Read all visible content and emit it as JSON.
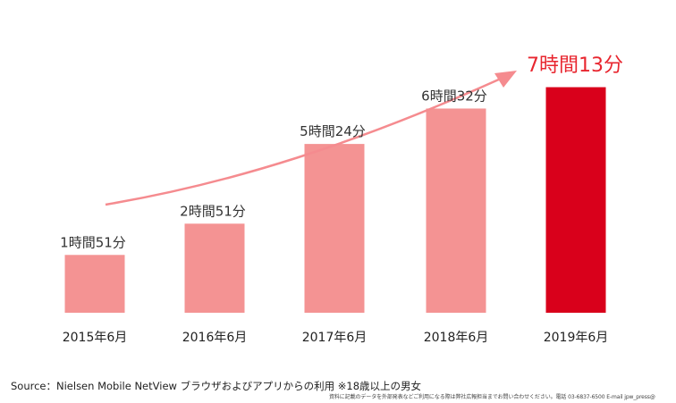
{
  "chart_data": {
    "type": "bar",
    "categories": [
      "2015年6月",
      "2016年6月",
      "2017年6月",
      "2018年6月",
      "2019年6月"
    ],
    "values_minutes": [
      111,
      171,
      324,
      392,
      433
    ],
    "value_labels": [
      "1時間51分",
      "2時間51分",
      "5時間24分",
      "6時間32分",
      "7時間13分"
    ],
    "bar_colors": [
      "#f49393",
      "#f49393",
      "#f49393",
      "#f49393",
      "#d9001b"
    ],
    "highlight_label_color": "#e8262f",
    "trend_arrow_color": "#f58b8f",
    "title": "",
    "xlabel": "",
    "ylabel": "",
    "grid": false
  },
  "footer": {
    "source": "Source：Nielsen Mobile NetView ブラウザおよびアプリからの利用 ※18歳以上の男女",
    "fineprint": "資料に記載のデータを外部発表などご利用になる際は弊社広報担当までお問い合わせください。電話 03-6837-6500 E-mail jpw_press@"
  }
}
